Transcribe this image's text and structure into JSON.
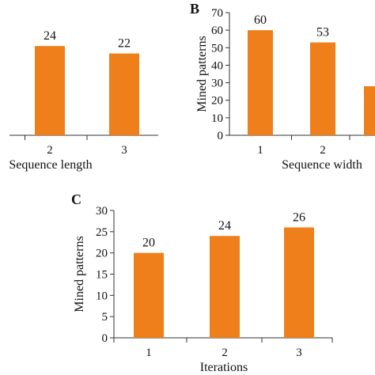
{
  "chart_data": [
    {
      "type": "bar",
      "panel": "",
      "categories": [
        "",
        "2",
        "3"
      ],
      "values": [
        null,
        24,
        22
      ],
      "value_labels": [
        "",
        "24",
        "22"
      ],
      "xlabel": "Sequence length",
      "ylabel": "",
      "yticks": [],
      "ylim": [
        0,
        30
      ],
      "color": "#ef7f1a",
      "grid": false,
      "legend": "none"
    },
    {
      "type": "bar",
      "panel": "B",
      "categories": [
        "1",
        "2",
        ""
      ],
      "values": [
        60,
        53,
        28
      ],
      "value_labels": [
        "60",
        "53",
        ""
      ],
      "xlabel": "Sequence width",
      "ylabel": "Mined patterns",
      "yticks": [
        "0",
        "10",
        "20",
        "30",
        "40",
        "50",
        "60",
        "70"
      ],
      "ylim": [
        0,
        70
      ],
      "color": "#ef7f1a",
      "grid": false,
      "legend": "none"
    },
    {
      "type": "bar",
      "panel": "C",
      "categories": [
        "1",
        "2",
        "3"
      ],
      "values": [
        20,
        24,
        26
      ],
      "value_labels": [
        "20",
        "24",
        "26"
      ],
      "xlabel": "Iterations",
      "ylabel": "Mined patterns",
      "yticks": [
        "0",
        "5",
        "10",
        "15",
        "20",
        "25",
        "30"
      ],
      "ylim": [
        0,
        30
      ],
      "color": "#ef7f1a",
      "grid": false,
      "legend": "none"
    }
  ]
}
